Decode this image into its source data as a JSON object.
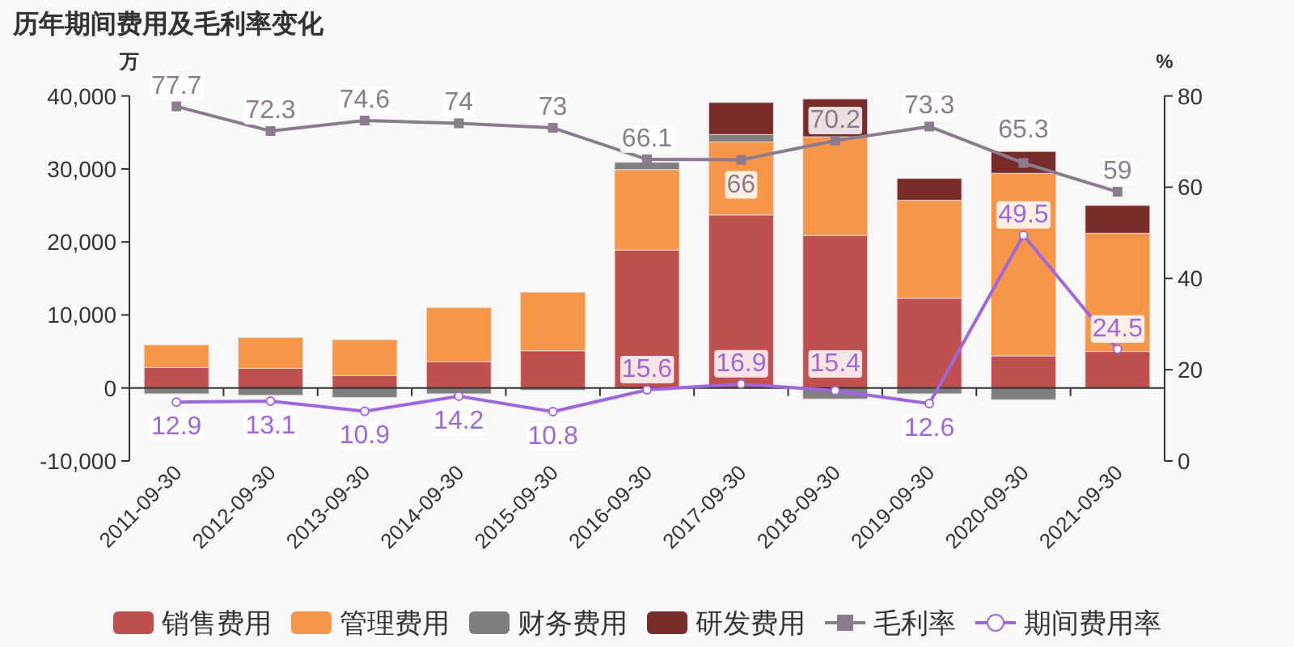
{
  "chart_data": {
    "type": "bar",
    "title": "历年期间费用及毛利率变化",
    "ylabel": "万",
    "y2label": "%",
    "stacked": true,
    "categories": [
      "2011-09-30",
      "2012-09-30",
      "2013-09-30",
      "2014-09-30",
      "2015-09-30",
      "2016-09-30",
      "2017-09-30",
      "2018-09-30",
      "2019-09-30",
      "2020-09-30",
      "2021-09-30"
    ],
    "series": [
      {
        "name": "销售费用",
        "color": "#c0504d",
        "values": [
          2800,
          2700,
          1700,
          3600,
          5100,
          18900,
          23700,
          20900,
          12300,
          4400,
          5000
        ]
      },
      {
        "name": "管理费用",
        "color": "#f79646",
        "values": [
          3100,
          4200,
          4900,
          7400,
          8000,
          11000,
          10000,
          13500,
          13400,
          25000,
          16200
        ]
      },
      {
        "name": "财务费用",
        "color": "#7f7f7f",
        "values": [
          -800,
          -1000,
          -1300,
          -800,
          -300,
          1000,
          1000,
          -1500,
          -800,
          -1600,
          null
        ]
      },
      {
        "name": "研发费用",
        "color": "#772c2a",
        "values": [
          null,
          null,
          null,
          null,
          null,
          null,
          4400,
          5200,
          3000,
          3000,
          3800
        ]
      },
      {
        "name": "毛利率",
        "type": "line",
        "axis": "y2",
        "marker": "square",
        "color": "#8c7b8f",
        "data_labels": true,
        "values": [
          77.7,
          72.3,
          74.6,
          74,
          73,
          66.1,
          66,
          70.2,
          73.3,
          65.3,
          59
        ]
      },
      {
        "name": "期间费用率",
        "type": "line",
        "axis": "y2",
        "marker": "circle",
        "color": "#a066e0",
        "data_labels": true,
        "values": [
          12.9,
          13.1,
          10.9,
          14.2,
          10.8,
          15.6,
          16.9,
          15.4,
          12.6,
          49.5,
          24.5
        ]
      }
    ],
    "ylim": [
      -10000,
      40000
    ],
    "yticks": [
      {
        "value": -10000,
        "label": "-10,000"
      },
      {
        "value": 0,
        "label": "0"
      },
      {
        "value": 10000,
        "label": "10,000"
      },
      {
        "value": 20000,
        "label": "20,000"
      },
      {
        "value": 30000,
        "label": "30,000"
      },
      {
        "value": 40000,
        "label": "40,000"
      }
    ],
    "y2lim": [
      0,
      80
    ],
    "y2ticks": [
      0,
      20,
      40,
      60,
      80
    ],
    "legend": "bottom"
  }
}
